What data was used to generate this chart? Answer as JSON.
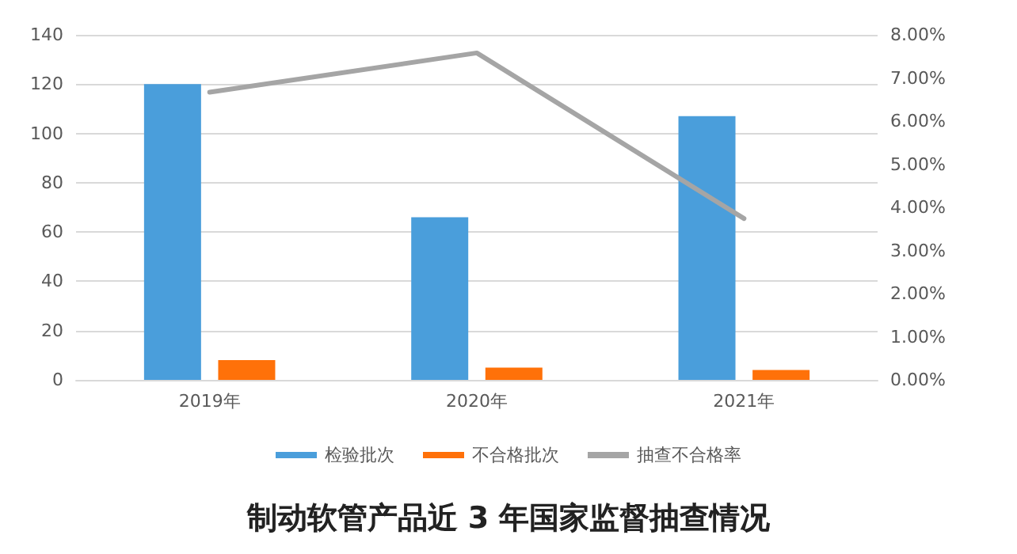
{
  "chart_data": {
    "type": "bar",
    "title": "制动软管产品近 3 年国家监督抽查情况",
    "categories": [
      "2019年",
      "2020年",
      "2021年"
    ],
    "series": [
      {
        "name": "检验批次",
        "color": "#4a9edb",
        "values": [
          120,
          66,
          107
        ]
      },
      {
        "name": "不合格批次",
        "color": "#ff7109",
        "values": [
          8,
          5,
          4
        ]
      },
      {
        "name": "抽查不合格率",
        "type": "line",
        "axis": "y2",
        "color": "#a5a5a5",
        "values": [
          6.67,
          7.58,
          3.74
        ]
      }
    ],
    "ylim": [
      0,
      140
    ],
    "yticks": [
      0,
      20,
      40,
      60,
      80,
      100,
      120,
      140
    ],
    "y2lim": [
      0,
      8
    ],
    "y2ticks": [
      {
        "value": 0,
        "label": "0.00%"
      },
      {
        "value": 1,
        "label": "1.00%"
      },
      {
        "value": 2,
        "label": "2.00%"
      },
      {
        "value": 3,
        "label": "3.00%"
      },
      {
        "value": 4,
        "label": "4.00%"
      },
      {
        "value": 5,
        "label": "5.00%"
      },
      {
        "value": 6,
        "label": "6.00%"
      },
      {
        "value": 7,
        "label": "7.00%"
      },
      {
        "value": 8,
        "label": "8.00%"
      }
    ],
    "grid": "y",
    "legend": "bottom",
    "marker": "none",
    "line_style": "solid"
  }
}
